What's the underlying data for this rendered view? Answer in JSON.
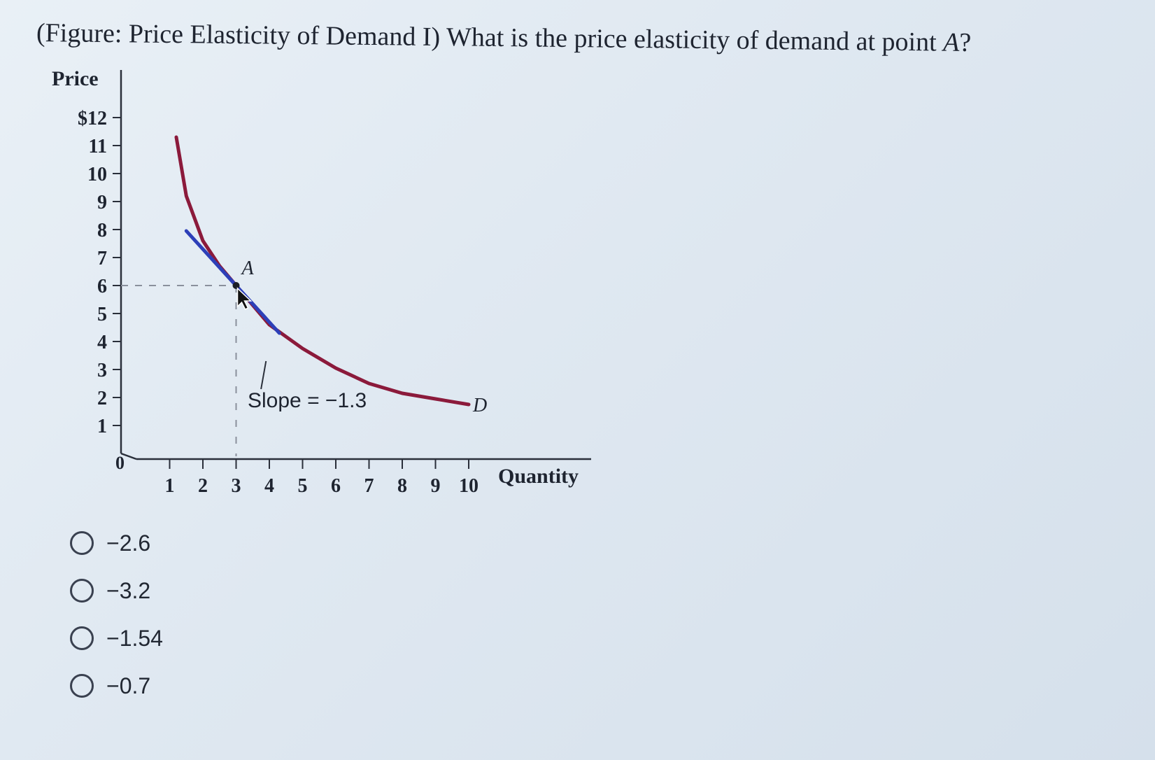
{
  "question": {
    "prefix": "(Figure: Price Elasticity of Demand I) What is the price elasticity of demand at point ",
    "point_name": "A",
    "suffix": "?"
  },
  "chart_data": {
    "type": "line",
    "ylabel": "Price",
    "xlabel": "Quantity",
    "y_ticks": [
      "1",
      "2",
      "3",
      "4",
      "5",
      "6",
      "7",
      "8",
      "9",
      "10",
      "11",
      "$12"
    ],
    "x_ticks": [
      "1",
      "2",
      "3",
      "4",
      "5",
      "6",
      "7",
      "8",
      "9",
      "10"
    ],
    "origin_label": "0",
    "xlim": [
      0,
      10.7
    ],
    "ylim": [
      0,
      12
    ],
    "series": [
      {
        "name": "D",
        "x": [
          1.2,
          1.5,
          2.0,
          2.5,
          3.0,
          4.0,
          5.0,
          6.0,
          7.0,
          8.0,
          9.0,
          10.0
        ],
        "y": [
          11.3,
          9.2,
          7.6,
          6.7,
          6.0,
          4.6,
          3.75,
          3.05,
          2.5,
          2.15,
          1.95,
          1.75
        ],
        "color": "#8b1a3b"
      },
      {
        "x": [
          1.5,
          4.3
        ],
        "y": [
          7.95,
          4.3
        ],
        "color": "#2d3fb8"
      }
    ],
    "point": {
      "label": "A",
      "x": 3,
      "y": 6
    },
    "annotation": {
      "text": "Slope = −1.3",
      "x": 4.8,
      "y": 2.0
    },
    "grid": false
  },
  "options": [
    {
      "label": "−2.6"
    },
    {
      "label": "−3.2"
    },
    {
      "label": "−1.54"
    },
    {
      "label": "−0.7"
    }
  ],
  "colors": {
    "demand_curve": "#8b1a3b",
    "tangent_line": "#2d3fb8",
    "axis": "#2a2f3a"
  },
  "icons": {
    "cursor": "mouse-pointer-icon"
  }
}
